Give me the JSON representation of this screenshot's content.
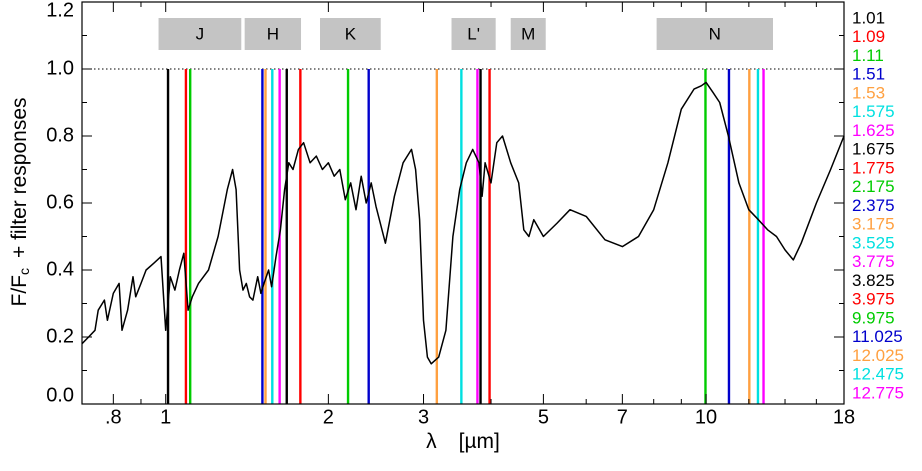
{
  "chart_data": {
    "type": "line",
    "title": "",
    "xlabel_symbol": "λ",
    "xlabel_unit": "[µm]",
    "ylabel": "F/F",
    "ylabel_sub": "c",
    "ylabel_suffix": "+   filter responses",
    "x_scale": "log",
    "xlim": [
      0.7,
      18
    ],
    "ylim": [
      0,
      1.2
    ],
    "xticks": [
      {
        "value": 0.8,
        "label": ".8"
      },
      {
        "value": 1,
        "label": "1"
      },
      {
        "value": 2,
        "label": "2"
      },
      {
        "value": 3,
        "label": "3"
      },
      {
        "value": 5,
        "label": "5"
      },
      {
        "value": 7,
        "label": "7"
      },
      {
        "value": 10,
        "label": "10"
      },
      {
        "value": 18,
        "label": "18"
      }
    ],
    "yticks": [
      {
        "value": 0.0,
        "label": "0.0"
      },
      {
        "value": 0.2,
        "label": "0.2"
      },
      {
        "value": 0.4,
        "label": "0.4"
      },
      {
        "value": 0.6,
        "label": "0.6"
      },
      {
        "value": 0.8,
        "label": "0.8"
      },
      {
        "value": 1.0,
        "label": "1.0"
      },
      {
        "value": 1.2,
        "label": "1.2"
      }
    ],
    "reference_line": {
      "y": 1.0,
      "style": "dotted"
    },
    "bands": [
      {
        "label": "J",
        "x0": 0.97,
        "x1": 1.38
      },
      {
        "label": "H",
        "x0": 1.4,
        "x1": 1.78
      },
      {
        "label": "K",
        "x0": 1.93,
        "x1": 2.5
      },
      {
        "label": "L'",
        "x0": 3.38,
        "x1": 4.08
      },
      {
        "label": "M",
        "x0": 4.35,
        "x1": 5.05
      },
      {
        "label": "N",
        "x0": 8.1,
        "x1": 13.3
      }
    ],
    "filters": [
      {
        "label": "1.01",
        "value": 1.01,
        "color": "#000000"
      },
      {
        "label": "1.09",
        "value": 1.09,
        "color": "#ff0000"
      },
      {
        "label": "1.11",
        "value": 1.11,
        "color": "#00cc00"
      },
      {
        "label": "1.51",
        "value": 1.51,
        "color": "#0000cc"
      },
      {
        "label": "1.53",
        "value": 1.53,
        "color": "#ffa040"
      },
      {
        "label": "1.575",
        "value": 1.575,
        "color": "#00e0e0"
      },
      {
        "label": "1.625",
        "value": 1.625,
        "color": "#ff00ff"
      },
      {
        "label": "1.675",
        "value": 1.675,
        "color": "#000000"
      },
      {
        "label": "1.775",
        "value": 1.775,
        "color": "#ff0000"
      },
      {
        "label": "2.175",
        "value": 2.175,
        "color": "#00cc00"
      },
      {
        "label": "2.375",
        "value": 2.375,
        "color": "#0000cc"
      },
      {
        "label": "3.175",
        "value": 3.175,
        "color": "#ffa040"
      },
      {
        "label": "3.525",
        "value": 3.525,
        "color": "#00e0e0"
      },
      {
        "label": "3.775",
        "value": 3.775,
        "color": "#ff00ff"
      },
      {
        "label": "3.825",
        "value": 3.825,
        "color": "#000000"
      },
      {
        "label": "3.975",
        "value": 3.975,
        "color": "#ff0000"
      },
      {
        "label": "9.975",
        "value": 9.975,
        "color": "#00cc00"
      },
      {
        "label": "11.025",
        "value": 11.025,
        "color": "#0000cc"
      },
      {
        "label": "12.025",
        "value": 12.025,
        "color": "#ffa040"
      },
      {
        "label": "12.475",
        "value": 12.475,
        "color": "#00e0e0"
      },
      {
        "label": "12.775",
        "value": 12.775,
        "color": "#ff00ff"
      }
    ],
    "series": [
      {
        "color": "#000000",
        "x": [
          0.7,
          0.72,
          0.74,
          0.75,
          0.77,
          0.78,
          0.8,
          0.82,
          0.83,
          0.85,
          0.87,
          0.88,
          0.9,
          0.92,
          0.95,
          0.98,
          1.0,
          1.02,
          1.04,
          1.06,
          1.08,
          1.1,
          1.12,
          1.15,
          1.2,
          1.25,
          1.3,
          1.33,
          1.35,
          1.37,
          1.39,
          1.41,
          1.43,
          1.45,
          1.48,
          1.5,
          1.52,
          1.55,
          1.57,
          1.6,
          1.63,
          1.66,
          1.69,
          1.72,
          1.76,
          1.8,
          1.85,
          1.9,
          1.95,
          2.0,
          2.05,
          2.1,
          2.15,
          2.2,
          2.25,
          2.3,
          2.35,
          2.4,
          2.45,
          2.55,
          2.65,
          2.75,
          2.85,
          2.9,
          2.95,
          3.0,
          3.05,
          3.1,
          3.2,
          3.3,
          3.4,
          3.5,
          3.6,
          3.7,
          3.8,
          3.85,
          3.9,
          4.0,
          4.1,
          4.2,
          4.35,
          4.5,
          4.6,
          4.7,
          4.8,
          5.0,
          5.3,
          5.6,
          6.0,
          6.5,
          7.0,
          7.5,
          8.0,
          8.5,
          9.0,
          9.5,
          9.8,
          10.0,
          10.3,
          10.6,
          11.0,
          11.5,
          12.0,
          12.5,
          13.0,
          13.5,
          14.0,
          14.5,
          15.0,
          16.0,
          17.0,
          18.0
        ],
        "y": [
          0.18,
          0.2,
          0.22,
          0.28,
          0.31,
          0.25,
          0.33,
          0.36,
          0.22,
          0.28,
          0.38,
          0.32,
          0.36,
          0.4,
          0.42,
          0.44,
          0.22,
          0.38,
          0.34,
          0.4,
          0.45,
          0.28,
          0.32,
          0.36,
          0.4,
          0.5,
          0.64,
          0.7,
          0.64,
          0.4,
          0.34,
          0.36,
          0.32,
          0.31,
          0.38,
          0.33,
          0.36,
          0.4,
          0.35,
          0.44,
          0.52,
          0.64,
          0.72,
          0.7,
          0.76,
          0.78,
          0.72,
          0.74,
          0.7,
          0.72,
          0.68,
          0.7,
          0.61,
          0.66,
          0.58,
          0.68,
          0.6,
          0.66,
          0.59,
          0.48,
          0.62,
          0.72,
          0.76,
          0.7,
          0.55,
          0.25,
          0.14,
          0.12,
          0.14,
          0.22,
          0.5,
          0.64,
          0.72,
          0.76,
          0.72,
          0.62,
          0.72,
          0.66,
          0.78,
          0.8,
          0.72,
          0.66,
          0.52,
          0.5,
          0.55,
          0.5,
          0.54,
          0.58,
          0.56,
          0.49,
          0.47,
          0.5,
          0.58,
          0.72,
          0.88,
          0.94,
          0.95,
          0.96,
          0.93,
          0.9,
          0.8,
          0.66,
          0.58,
          0.55,
          0.52,
          0.5,
          0.46,
          0.43,
          0.48,
          0.6,
          0.7,
          0.8
        ]
      }
    ]
  }
}
